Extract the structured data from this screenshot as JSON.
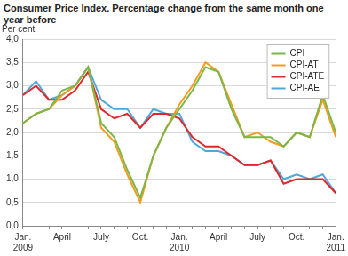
{
  "chart_data": {
    "type": "line",
    "title": "Consumer Price Index. Percentage change from the same month one year before",
    "y_label": "Per cent",
    "categories": [
      [
        "Jan.",
        "2009"
      ],
      null,
      null,
      "April",
      null,
      null,
      "July",
      null,
      null,
      "Oct.",
      null,
      null,
      [
        "Jan.",
        "2010"
      ],
      null,
      null,
      "April",
      null,
      null,
      "July",
      null,
      null,
      "Oct.",
      null,
      null,
      [
        "Jan.",
        "2011"
      ]
    ],
    "series": [
      {
        "name": "CPI",
        "color": "#7ab648",
        "values": [
          2.2,
          2.4,
          2.5,
          2.9,
          3.0,
          3.4,
          2.2,
          1.9,
          1.2,
          0.6,
          1.5,
          2.1,
          2.5,
          2.9,
          3.4,
          3.3,
          2.5,
          1.9,
          1.9,
          1.9,
          1.7,
          2.0,
          1.9,
          2.8,
          2.0
        ]
      },
      {
        "name": "CPI-AT",
        "color": "#f39c1f",
        "values": [
          2.2,
          2.4,
          2.5,
          2.8,
          3.0,
          3.4,
          2.1,
          1.8,
          1.1,
          0.5,
          1.5,
          2.1,
          2.6,
          3.0,
          3.5,
          3.3,
          2.6,
          1.9,
          2.0,
          1.8,
          1.7,
          2.0,
          1.9,
          2.7,
          1.9
        ]
      },
      {
        "name": "CPI-ATE",
        "color": "#e3262c",
        "values": [
          2.8,
          3.0,
          2.7,
          2.7,
          2.9,
          3.3,
          2.5,
          2.3,
          2.4,
          2.1,
          2.4,
          2.4,
          2.3,
          1.9,
          1.7,
          1.7,
          1.5,
          1.3,
          1.3,
          1.4,
          0.9,
          1.0,
          1.0,
          1.0,
          0.7
        ]
      },
      {
        "name": "CPI-AE",
        "color": "#4fa8d8",
        "values": [
          2.8,
          3.1,
          2.7,
          2.8,
          3.0,
          3.4,
          2.7,
          2.5,
          2.5,
          2.1,
          2.5,
          2.4,
          2.4,
          1.8,
          1.6,
          1.6,
          1.5,
          1.3,
          1.3,
          1.4,
          1.0,
          1.1,
          1.0,
          1.1,
          0.7
        ]
      }
    ],
    "ylim": [
      0,
      4
    ],
    "yticks": [
      {
        "value": 0,
        "label": "0,0"
      },
      {
        "value": 0.5,
        "label": "0,5"
      },
      {
        "value": 1,
        "label": "1,0"
      },
      {
        "value": 1.5,
        "label": "1,5"
      },
      {
        "value": 2,
        "label": "2,0"
      },
      {
        "value": 2.5,
        "label": "2,5"
      },
      {
        "value": 3,
        "label": "3,0"
      },
      {
        "value": 3.5,
        "label": "3,5"
      },
      {
        "value": 4,
        "label": "4,0"
      }
    ],
    "grid": true,
    "legend": "upper right"
  }
}
